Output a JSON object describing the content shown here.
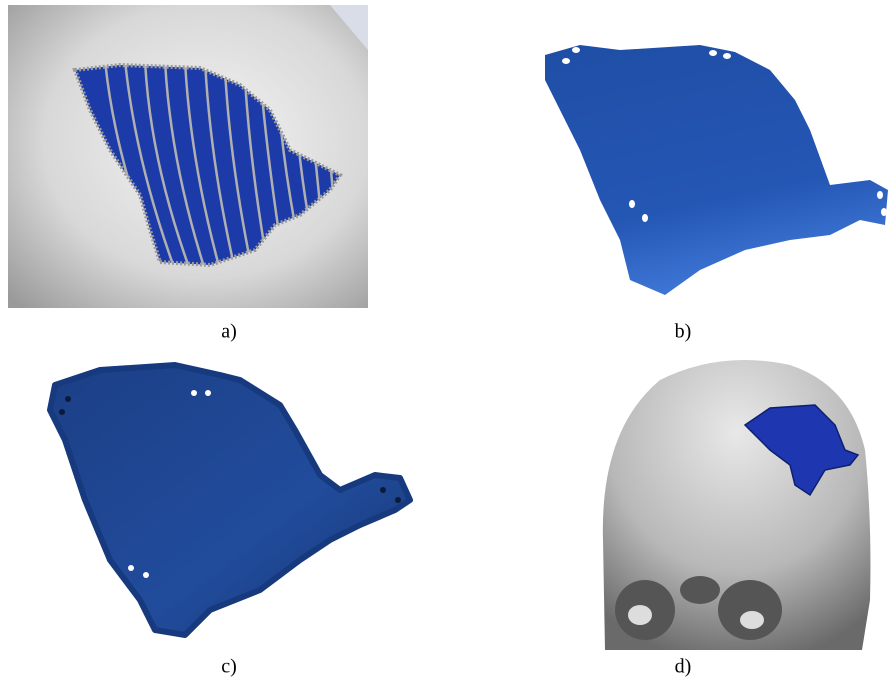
{
  "figure": {
    "panels": [
      {
        "label": "a)"
      },
      {
        "label": "b)"
      },
      {
        "label": "c)"
      },
      {
        "label": "d)"
      }
    ]
  }
}
